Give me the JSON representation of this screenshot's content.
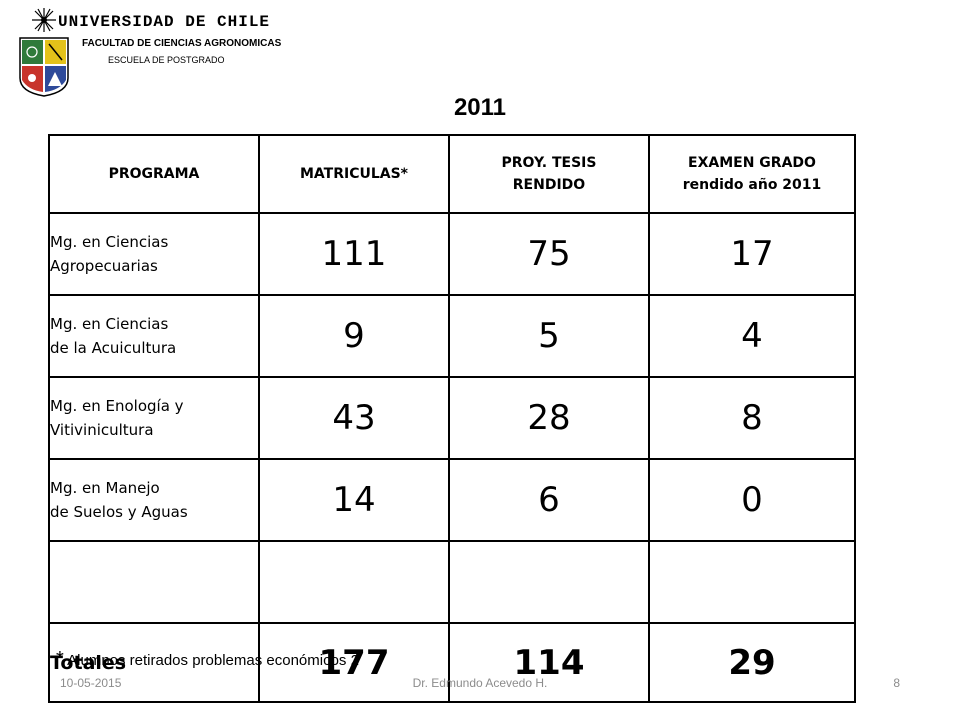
{
  "header": {
    "university": "UNIVERSIDAD DE CHILE",
    "faculty": "FACULTAD DE CIENCIAS AGRONOMICAS",
    "school": "ESCUELA DE POSTGRADO",
    "logo_icon": "university-seal-icon"
  },
  "year": "2011",
  "table": {
    "headers": {
      "programa": "PROGRAMA",
      "matriculas": "MATRICULAS*",
      "tesis_line1": "PROY. TESIS",
      "tesis_line2": "RENDIDO",
      "examen_line1": "EXAMEN GRADO",
      "examen_line2": "rendido año 2011"
    },
    "rows": [
      {
        "program_line1": "Mg. en Ciencias",
        "program_line2": "Agropecuarias",
        "matriculas": "111",
        "tesis": "75",
        "examen": "17"
      },
      {
        "program_line1": "Mg. en Ciencias",
        "program_line2": "de la Acuicultura",
        "matriculas": "9",
        "tesis": "5",
        "examen": "4"
      },
      {
        "program_line1": "Mg. en Enología y",
        "program_line2": "Vitivinicultura",
        "matriculas": "43",
        "tesis": "28",
        "examen": "8"
      },
      {
        "program_line1": "Mg. en Manejo",
        "program_line2": "de Suelos y Aguas",
        "matriculas": "14",
        "tesis": "6",
        "examen": "0"
      }
    ],
    "totals": {
      "label": "Totales",
      "matriculas": "177",
      "tesis": "114",
      "examen": "29"
    }
  },
  "footnote": {
    "mark": "*",
    "text": "Alumnos retirados problemas económicos 2"
  },
  "footer": {
    "date": "10-05-2015",
    "author": "Dr. Edmundo Acevedo H.",
    "page": "8"
  }
}
